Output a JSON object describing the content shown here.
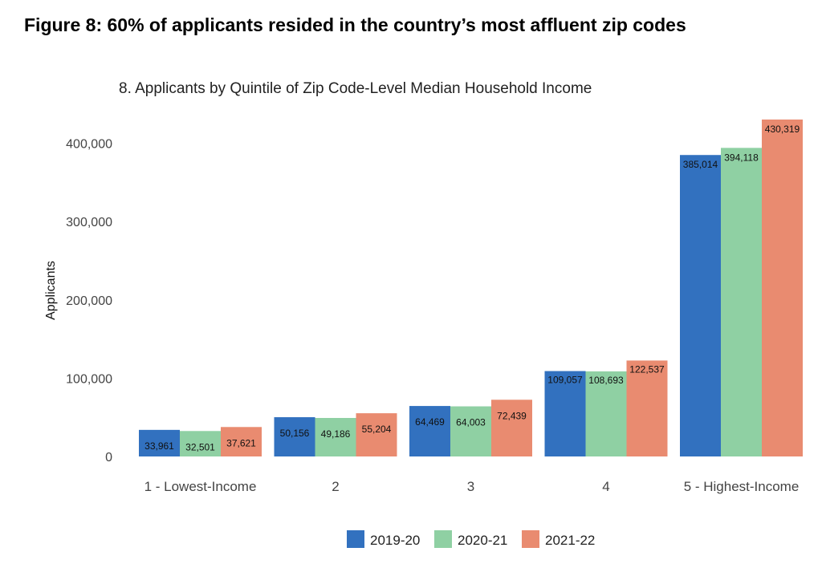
{
  "figure_title": "Figure 8: 60% of applicants resided in the country’s most affluent zip codes",
  "chart_data": {
    "type": "bar",
    "title": "8. Applicants by Quintile of Zip Code-Level Median Household Income",
    "xlabel": "",
    "ylabel": "Applicants",
    "categories": [
      "1 - Lowest-Income",
      "2",
      "3",
      "4",
      "5 - Highest-Income"
    ],
    "series": [
      {
        "name": "2019-20",
        "color": "#3271bf",
        "values": [
          33961,
          50156,
          64469,
          109057,
          385014
        ],
        "labels": [
          "33,961",
          "50,156",
          "64,469",
          "109,057",
          "385,014"
        ]
      },
      {
        "name": "2020-21",
        "color": "#8fd0a3",
        "values": [
          32501,
          49186,
          64003,
          108693,
          394118
        ],
        "labels": [
          "32,501",
          "49,186",
          "64,003",
          "108,693",
          "394,118"
        ]
      },
      {
        "name": "2021-22",
        "color": "#e98b70",
        "values": [
          37621,
          55204,
          72439,
          122537,
          430319
        ],
        "labels": [
          "37,621",
          "55,204",
          "72,439",
          "122,537",
          "430,319"
        ]
      }
    ],
    "yticks": [
      0,
      100000,
      200000,
      300000,
      400000
    ],
    "ytick_labels": [
      "0",
      "100,000",
      "200,000",
      "300,000",
      "400,000"
    ],
    "ylim": [
      0,
      430319
    ],
    "grid": false,
    "legend_position": "bottom-center"
  }
}
